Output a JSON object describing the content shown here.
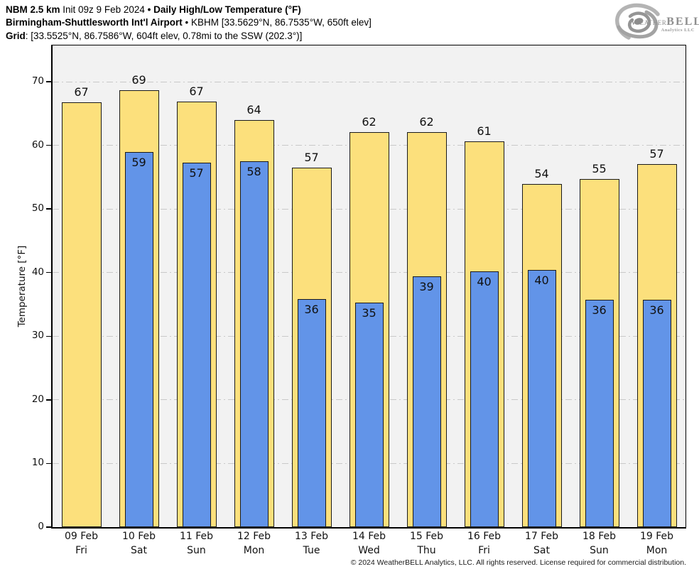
{
  "header": {
    "line1_model": "NBM 2.5 km",
    "line1_init": " Init 09z 9 Feb 2024 ",
    "line1_sep": "•",
    "line1_title": " Daily High/Low Temperature (°F)",
    "line2_station": "Birmingham-Shuttlesworth Int'l Airport",
    "line2_sep": " • ",
    "line2_info": "KBHM [33.5629°N, 86.7535°W, 650ft elev]",
    "line3_label": "Grid",
    "line3_info": ": [33.5525°N, 86.7586°W, 604ft elev, 0.78mi to the SSW (202.3°)]"
  },
  "logo": {
    "name_weather": "Weather",
    "name_bell": "BELL",
    "tagline": "Analytics LLC"
  },
  "chart_data": {
    "type": "bar",
    "title": "Daily High/Low Temperature (°F)",
    "xlabel": "",
    "ylabel": "Temperature [°F]",
    "ylim": [
      0,
      75.7
    ],
    "yticks": [
      0,
      10,
      20,
      30,
      40,
      50,
      60,
      70
    ],
    "grid": {
      "horizontal": true,
      "style": "dash-dot",
      "color": "#C9C9C9"
    },
    "legend": "none",
    "categories": [
      {
        "date": "09 Feb",
        "day": "Fri"
      },
      {
        "date": "10 Feb",
        "day": "Sat"
      },
      {
        "date": "11 Feb",
        "day": "Sun"
      },
      {
        "date": "12 Feb",
        "day": "Mon"
      },
      {
        "date": "13 Feb",
        "day": "Tue"
      },
      {
        "date": "14 Feb",
        "day": "Wed"
      },
      {
        "date": "15 Feb",
        "day": "Thu"
      },
      {
        "date": "16 Feb",
        "day": "Fri"
      },
      {
        "date": "17 Feb",
        "day": "Sat"
      },
      {
        "date": "18 Feb",
        "day": "Sun"
      },
      {
        "date": "19 Feb",
        "day": "Mon"
      }
    ],
    "series": [
      {
        "name": "Daily high",
        "color": "#FCE07C",
        "values": [
          66.8,
          68.7,
          66.9,
          64.0,
          56.5,
          62.1,
          62.1,
          60.6,
          53.9,
          54.7,
          57.1
        ],
        "labels": [
          "67",
          "69",
          "67",
          "64",
          "57",
          "62",
          "62",
          "61",
          "54",
          "55",
          "57"
        ]
      },
      {
        "name": "Daily low",
        "color": "#6294E8",
        "values": [
          null,
          58.9,
          57.3,
          57.5,
          35.8,
          35.3,
          39.4,
          40.2,
          40.4,
          35.7,
          35.7
        ],
        "labels": [
          null,
          "59",
          "57",
          "58",
          "36",
          "35",
          "39",
          "40",
          "40",
          "36",
          "36"
        ]
      }
    ]
  },
  "footer": {
    "copyright": "© 2024 WeatherBELL Analytics, LLC. All rights reserved. License required for commercial distribution."
  },
  "colors": {
    "high_bar": "#FCE07C",
    "low_bar": "#6294E8",
    "plot_bg": "#F2F2F2",
    "grid": "#C9C9C9",
    "axis": "#000000",
    "bar_border": "#1A1A1A",
    "logo_gray": "#9A9A9A"
  }
}
